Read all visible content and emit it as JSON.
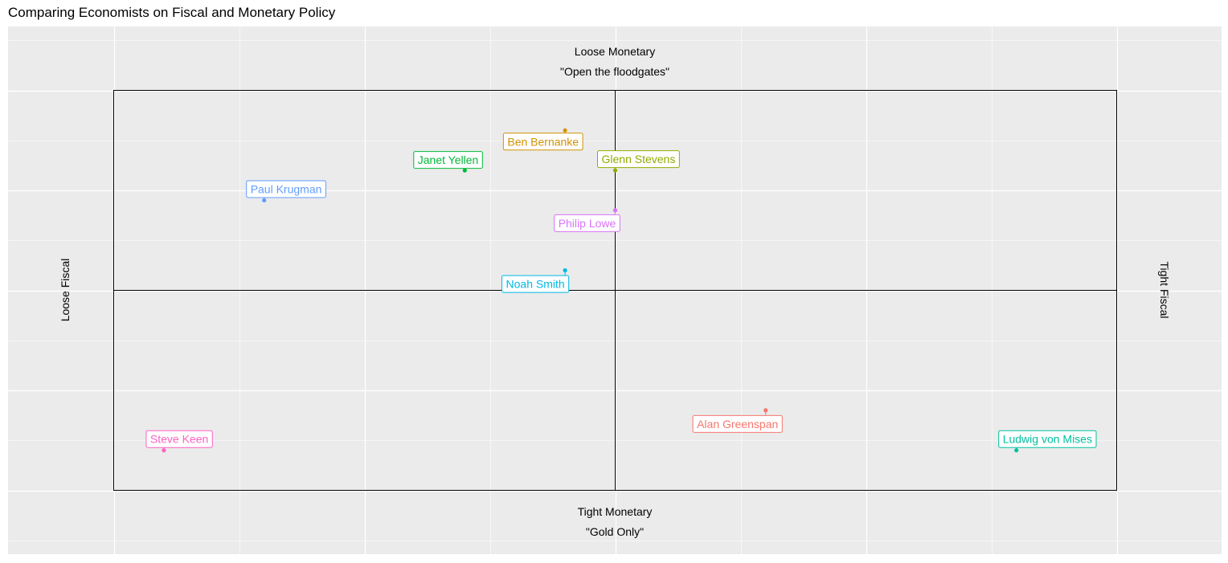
{
  "chart_data": {
    "type": "scatter",
    "title": "Comparing Economists on Fiscal and Monetary Policy",
    "xlim": [
      -10,
      10
    ],
    "ylim": [
      -10,
      10
    ],
    "grid": true,
    "annotations": {
      "top_line1": "Loose Monetary",
      "top_line2": "\"Open the floodgates\"",
      "bottom_line1": "Tight Monetary",
      "bottom_line2": "\"Gold Only\"",
      "left": "Loose Fiscal",
      "right": "Tight Fiscal"
    },
    "points": [
      {
        "label": "Alan Greenspan",
        "x": 3,
        "y": -6,
        "color": "#F8766D"
      },
      {
        "label": "Ben Bernanke",
        "x": -1,
        "y": 8,
        "color": "#D39200"
      },
      {
        "label": "Glenn Stevens",
        "x": 0,
        "y": 6,
        "color": "#93AA00"
      },
      {
        "label": "Janet Yellen",
        "x": -3,
        "y": 6,
        "color": "#00BA38"
      },
      {
        "label": "Ludwig von Mises",
        "x": 8,
        "y": -8,
        "color": "#00C19F"
      },
      {
        "label": "Noah Smith",
        "x": -1,
        "y": 1,
        "color": "#00B9E3"
      },
      {
        "label": "Paul Krugman",
        "x": -7,
        "y": 4.5,
        "color": "#619CFF"
      },
      {
        "label": "Philip Lowe",
        "x": 0,
        "y": 4,
        "color": "#DB72FB"
      },
      {
        "label": "Steve Keen",
        "x": -9,
        "y": -8,
        "color": "#FF61C3"
      }
    ]
  }
}
